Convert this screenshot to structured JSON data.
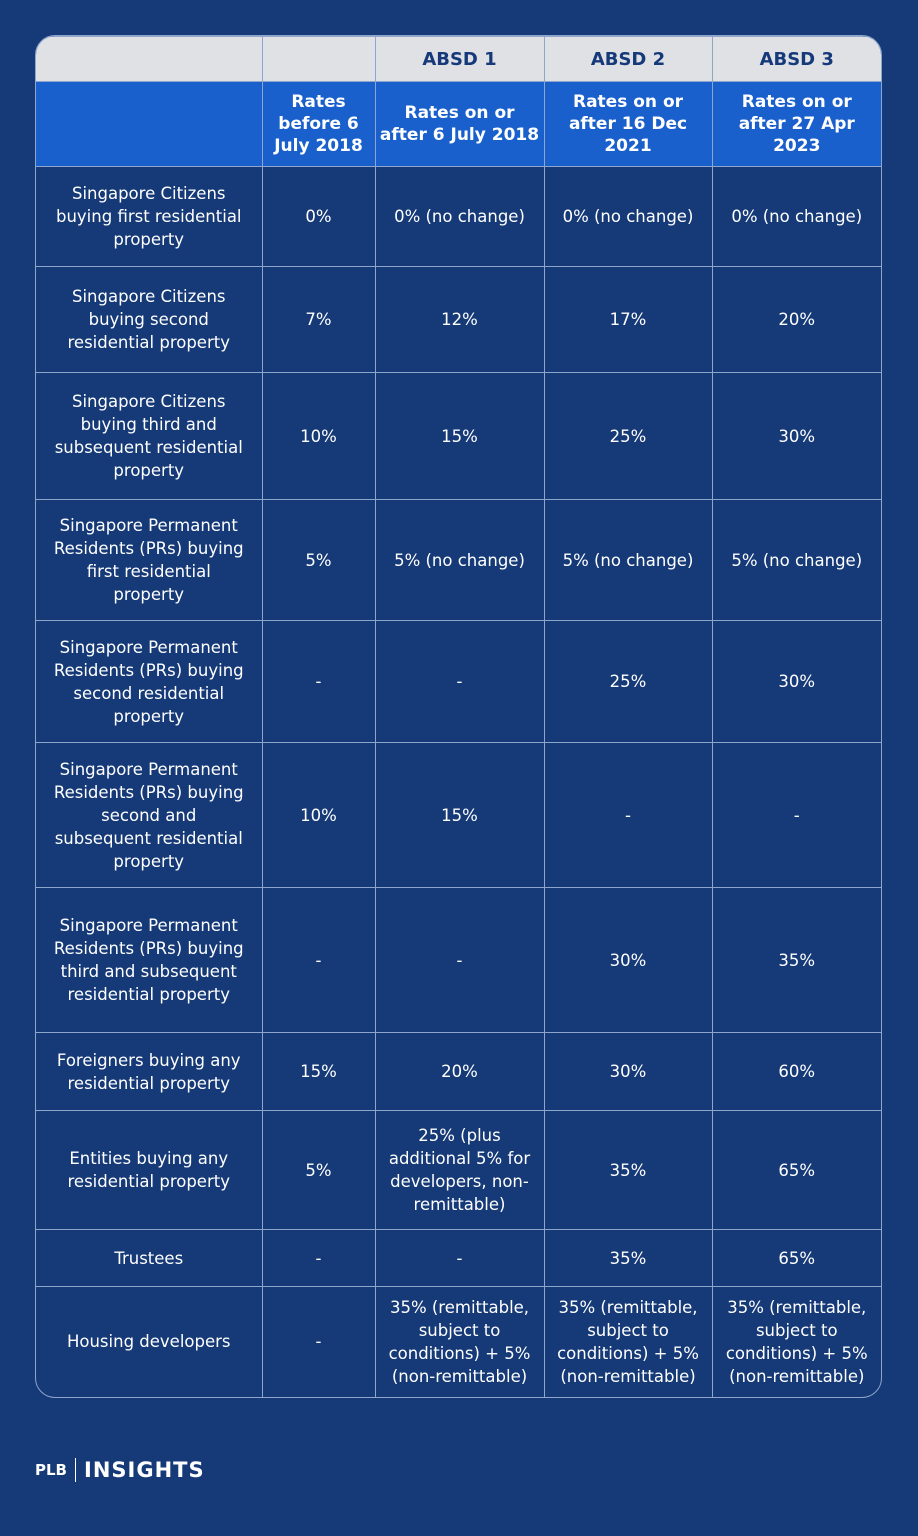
{
  "absd_headers": [
    "ABSD 1",
    "ABSD 2",
    "ABSD 3"
  ],
  "column_headers": [
    "Rates before 6 July 2018",
    "Rates on or after 6 July 2018",
    "Rates on or after 16 Dec 2021",
    "Rates on or after 27 Apr 2023"
  ],
  "rows": [
    [
      "Singapore Citizens buying first residential property",
      "0%",
      "0% (no change)",
      "0% (no change)",
      "0% (no change)"
    ],
    [
      "Singapore Citizens buying second residential property",
      "7%",
      "12%",
      "17%",
      "20%"
    ],
    [
      "Singapore Citizens buying third and subsequent residential property",
      "10%",
      "15%",
      "25%",
      "30%"
    ],
    [
      "Singapore Permanent Residents (PRs) buying first residential property",
      "5%",
      "5% (no change)",
      "5% (no change)",
      "5% (no change)"
    ],
    [
      "Singapore Permanent Residents (PRs) buying second residential property",
      "-",
      "-",
      "25%",
      "30%"
    ],
    [
      "Singapore Permanent Residents (PRs) buying second and subsequent residential property",
      "10%",
      "15%",
      "-",
      "-"
    ],
    [
      "Singapore Permanent Residents (PRs) buying third and subsequent residential property",
      "-",
      "-",
      "30%",
      "35%"
    ],
    [
      "Foreigners buying any residential property",
      "15%",
      "20%",
      "30%",
      "60%"
    ],
    [
      "Entities buying any residential property",
      "5%",
      "25% (plus additional 5% for developers, non-remittable)",
      "35%",
      "65%"
    ],
    [
      "Trustees",
      "-",
      "-",
      "35%",
      "65%"
    ],
    [
      "Housing developers",
      "-",
      "35% (remittable, subject to conditions) + 5% (non-remittable)",
      "35% (remittable, subject to conditions) + 5% (non-remittable)",
      "35% (remittable, subject to conditions) + 5% (non-remittable)"
    ]
  ],
  "footer": {
    "brand": "PLB",
    "section": "INSIGHTS"
  }
}
